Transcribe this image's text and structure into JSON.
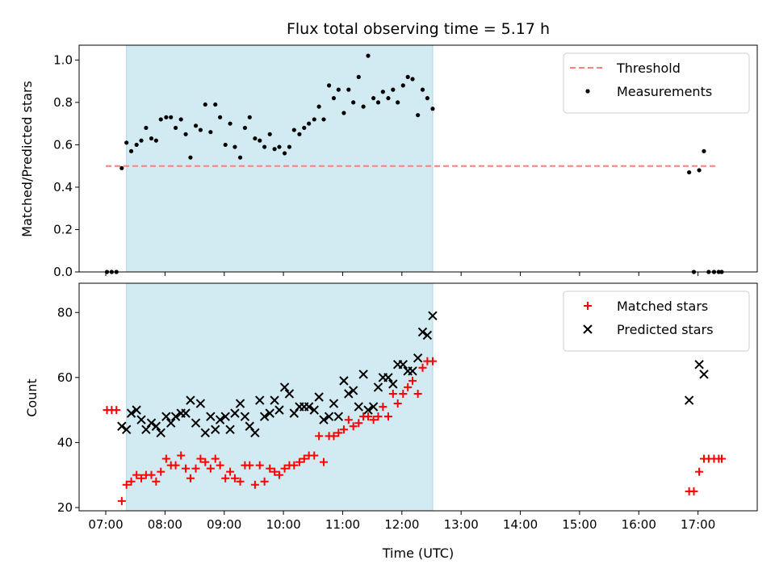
{
  "chart_data": {
    "title": "Flux total observing time = 5.17 h",
    "xlabel": "Time (UTC)",
    "x_ticks": [
      "07:00",
      "08:00",
      "09:00",
      "10:00",
      "11:00",
      "12:00",
      "13:00",
      "14:00",
      "15:00",
      "16:00",
      "17:00"
    ],
    "x_range_hours": [
      6.55,
      18.0
    ],
    "shaded_interval_hours": [
      7.35,
      12.52
    ],
    "shade_color": "#add8e6",
    "panels": [
      {
        "type": "scatter",
        "ylabel": "Matched/Predicted stars",
        "ylim": [
          0,
          1.07
        ],
        "y_ticks": [
          "0.0",
          "0.2",
          "0.4",
          "0.6",
          "0.8",
          "1.0"
        ],
        "y_tick_values": [
          0,
          0.2,
          0.4,
          0.6,
          0.8,
          1.0
        ],
        "legend_position": "top-right",
        "threshold": {
          "name": "Threshold",
          "value": 0.5,
          "x": [
            7.0,
            17.3
          ],
          "color": "#ff7f7f",
          "style": "dashed"
        },
        "series": [
          {
            "name": "Measurements",
            "color": "#000000",
            "marker": "dot",
            "x": [
              7.02,
              7.1,
              7.18,
              7.27,
              7.35,
              7.43,
              7.52,
              7.6,
              7.68,
              7.77,
              7.85,
              7.93,
              8.02,
              8.1,
              8.18,
              8.27,
              8.35,
              8.43,
              8.52,
              8.6,
              8.68,
              8.77,
              8.85,
              8.93,
              9.02,
              9.1,
              9.18,
              9.27,
              9.35,
              9.43,
              9.52,
              9.6,
              9.68,
              9.77,
              9.85,
              9.93,
              10.02,
              10.1,
              10.18,
              10.27,
              10.35,
              10.43,
              10.52,
              10.6,
              10.68,
              10.77,
              10.85,
              10.93,
              11.02,
              11.1,
              11.18,
              11.27,
              11.35,
              11.43,
              11.52,
              11.6,
              11.68,
              11.77,
              11.85,
              11.93,
              12.02,
              12.1,
              12.18,
              12.27,
              12.35,
              12.43,
              12.52,
              16.85,
              16.93,
              17.02,
              17.1,
              17.18,
              17.27,
              17.35,
              17.4
            ],
            "y": [
              0.0,
              0.0,
              0.0,
              0.49,
              0.61,
              0.57,
              0.6,
              0.62,
              0.68,
              0.63,
              0.62,
              0.72,
              0.73,
              0.73,
              0.68,
              0.72,
              0.65,
              0.54,
              0.69,
              0.67,
              0.79,
              0.66,
              0.79,
              0.73,
              0.6,
              0.7,
              0.59,
              0.54,
              0.68,
              0.73,
              0.63,
              0.62,
              0.59,
              0.65,
              0.58,
              0.59,
              0.56,
              0.59,
              0.67,
              0.65,
              0.68,
              0.7,
              0.72,
              0.78,
              0.72,
              0.88,
              0.82,
              0.86,
              0.75,
              0.86,
              0.8,
              0.92,
              0.78,
              1.02,
              0.82,
              0.8,
              0.85,
              0.82,
              0.86,
              0.8,
              0.88,
              0.92,
              0.91,
              0.74,
              0.86,
              0.82,
              0.77,
              0.47,
              0.0,
              0.48,
              0.57,
              0.0,
              0.0,
              0.0,
              0.0
            ]
          }
        ]
      },
      {
        "type": "scatter",
        "ylabel": "Count",
        "ylim": [
          19,
          89
        ],
        "y_ticks": [
          "20",
          "40",
          "60",
          "80"
        ],
        "y_tick_values": [
          20,
          40,
          60,
          80
        ],
        "legend_position": "top-right",
        "series": [
          {
            "name": "Matched stars",
            "color": "#ff0000",
            "marker": "plus",
            "x": [
              7.02,
              7.1,
              7.18,
              7.27,
              7.35,
              7.43,
              7.52,
              7.6,
              7.68,
              7.77,
              7.85,
              7.93,
              8.02,
              8.1,
              8.18,
              8.27,
              8.35,
              8.43,
              8.52,
              8.6,
              8.68,
              8.77,
              8.85,
              8.93,
              9.02,
              9.1,
              9.18,
              9.27,
              9.35,
              9.43,
              9.52,
              9.6,
              9.68,
              9.77,
              9.85,
              9.93,
              10.02,
              10.1,
              10.18,
              10.27,
              10.35,
              10.43,
              10.52,
              10.6,
              10.68,
              10.77,
              10.85,
              10.93,
              11.02,
              11.1,
              11.18,
              11.27,
              11.35,
              11.43,
              11.52,
              11.6,
              11.68,
              11.77,
              11.85,
              11.93,
              12.02,
              12.1,
              12.18,
              12.27,
              12.35,
              12.43,
              12.52,
              16.85,
              16.93,
              17.02,
              17.1,
              17.18,
              17.27,
              17.35,
              17.4
            ],
            "y": [
              50,
              50,
              50,
              22,
              27,
              28,
              30,
              29,
              30,
              30,
              28,
              31,
              35,
              33,
              33,
              36,
              32,
              29,
              32,
              35,
              34,
              32,
              35,
              33,
              29,
              31,
              29,
              28,
              33,
              33,
              27,
              33,
              28,
              32,
              31,
              30,
              32,
              33,
              33,
              34,
              35,
              36,
              36,
              42,
              34,
              42,
              42,
              43,
              44,
              47,
              45,
              46,
              48,
              48,
              47,
              48,
              51,
              48,
              55,
              52,
              55,
              57,
              59,
              55,
              63,
              65,
              65,
              25,
              25,
              31,
              35,
              35,
              35,
              35,
              35
            ]
          },
          {
            "name": "Predicted stars",
            "color": "#000000",
            "marker": "cross",
            "x": [
              7.27,
              7.35,
              7.43,
              7.52,
              7.6,
              7.68,
              7.77,
              7.85,
              7.93,
              8.02,
              8.1,
              8.18,
              8.27,
              8.35,
              8.43,
              8.52,
              8.6,
              8.68,
              8.77,
              8.85,
              8.93,
              9.02,
              9.1,
              9.18,
              9.27,
              9.35,
              9.43,
              9.52,
              9.6,
              9.68,
              9.77,
              9.85,
              9.93,
              10.02,
              10.1,
              10.18,
              10.27,
              10.35,
              10.43,
              10.52,
              10.6,
              10.68,
              10.77,
              10.85,
              10.93,
              11.02,
              11.1,
              11.18,
              11.27,
              11.35,
              11.43,
              11.52,
              11.6,
              11.68,
              11.77,
              11.85,
              11.93,
              12.02,
              12.1,
              12.18,
              12.27,
              12.35,
              12.43,
              12.52,
              16.85,
              17.02,
              17.1
            ],
            "y": [
              45,
              44,
              49,
              50,
              47,
              44,
              46,
              45,
              43,
              48,
              46,
              48,
              49,
              49,
              53,
              46,
              52,
              43,
              48,
              44,
              47,
              48,
              44,
              49,
              52,
              48,
              45,
              43,
              53,
              48,
              49,
              53,
              50,
              57,
              55,
              49,
              51,
              51,
              51,
              50,
              54,
              47,
              48,
              52,
              48,
              59,
              55,
              56,
              51,
              61,
              50,
              51,
              57,
              60,
              60,
              58,
              64,
              64,
              62,
              62,
              66,
              74,
              73,
              79,
              53,
              64,
              61
            ]
          }
        ]
      }
    ]
  }
}
